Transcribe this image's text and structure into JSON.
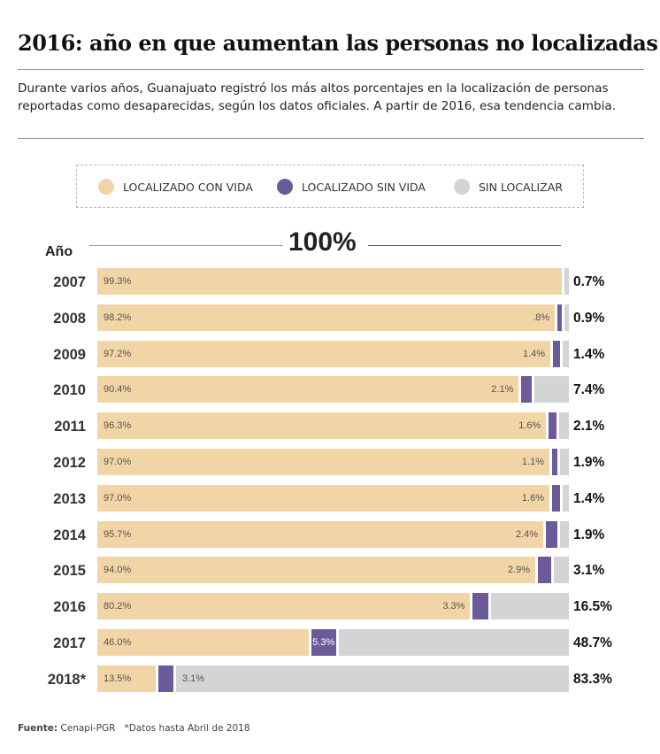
{
  "title": "2016: año en que aumentan las personas no localizadas",
  "subtitle": "Durante varios años, Guanajuato registró los más altos porcentajes en la localización de personas reportadas como desaparecidas, según los datos oficiales. A partir de 2016, esa tendencia cambia.",
  "colors": {
    "con_vida": "#f1d5a6",
    "sin_vida": "#6b5b9b",
    "sin_localizar": "#d3d4d6"
  },
  "legend": [
    "LOCALIZADO CON VIDA",
    "LOCALIZADO SIN VIDA",
    "SIN LOCALIZAR"
  ],
  "footer": {
    "source_label": "Fuente:",
    "source": "Cenapi-PGR",
    "note": "*Datos hasta Abril de 2018"
  },
  "chart_data": {
    "type": "bar",
    "orientation": "horizontal-stacked-100",
    "axis_label": "Año",
    "scale_label": "100%",
    "categories": [
      "2007",
      "2008",
      "2009",
      "2010",
      "2011",
      "2012",
      "2013",
      "2014",
      "2015",
      "2016",
      "2017",
      "2018*"
    ],
    "series": [
      {
        "name": "LOCALIZADO CON VIDA",
        "values": [
          99.3,
          98.2,
          97.2,
          90.4,
          96.3,
          97.0,
          97.0,
          95.7,
          94.0,
          80.2,
          46.0,
          13.5
        ],
        "labels": [
          "99.3%",
          "98.2%",
          "97.2%",
          "90.4%",
          "96.3%",
          "97.0%",
          "97.0%",
          "95.7%",
          "94.0%",
          "80.2%",
          "46.0%",
          "13.5%"
        ]
      },
      {
        "name": "LOCALIZADO SIN VIDA",
        "values": [
          0,
          0.8,
          1.4,
          2.1,
          1.6,
          1.1,
          1.6,
          2.4,
          2.9,
          3.3,
          5.3,
          3.1
        ],
        "labels": [
          "",
          ".8%",
          "1.4%",
          "2.1%",
          "1.6%",
          "1.1%",
          "1.6%",
          "2.4%",
          "2.9%",
          "3.3%",
          "5.3%",
          "3.1%"
        ]
      },
      {
        "name": "SIN LOCALIZAR",
        "values": [
          0.7,
          0.9,
          1.4,
          7.4,
          2.1,
          1.9,
          1.4,
          1.9,
          3.1,
          16.5,
          48.7,
          83.3
        ],
        "labels": [
          "0.7%",
          "0.9%",
          "1.4%",
          "7.4%",
          "2.1%",
          "1.9%",
          "1.4%",
          "1.9%",
          "3.1%",
          "16.5%",
          "48.7%",
          "83.3%"
        ]
      }
    ]
  }
}
